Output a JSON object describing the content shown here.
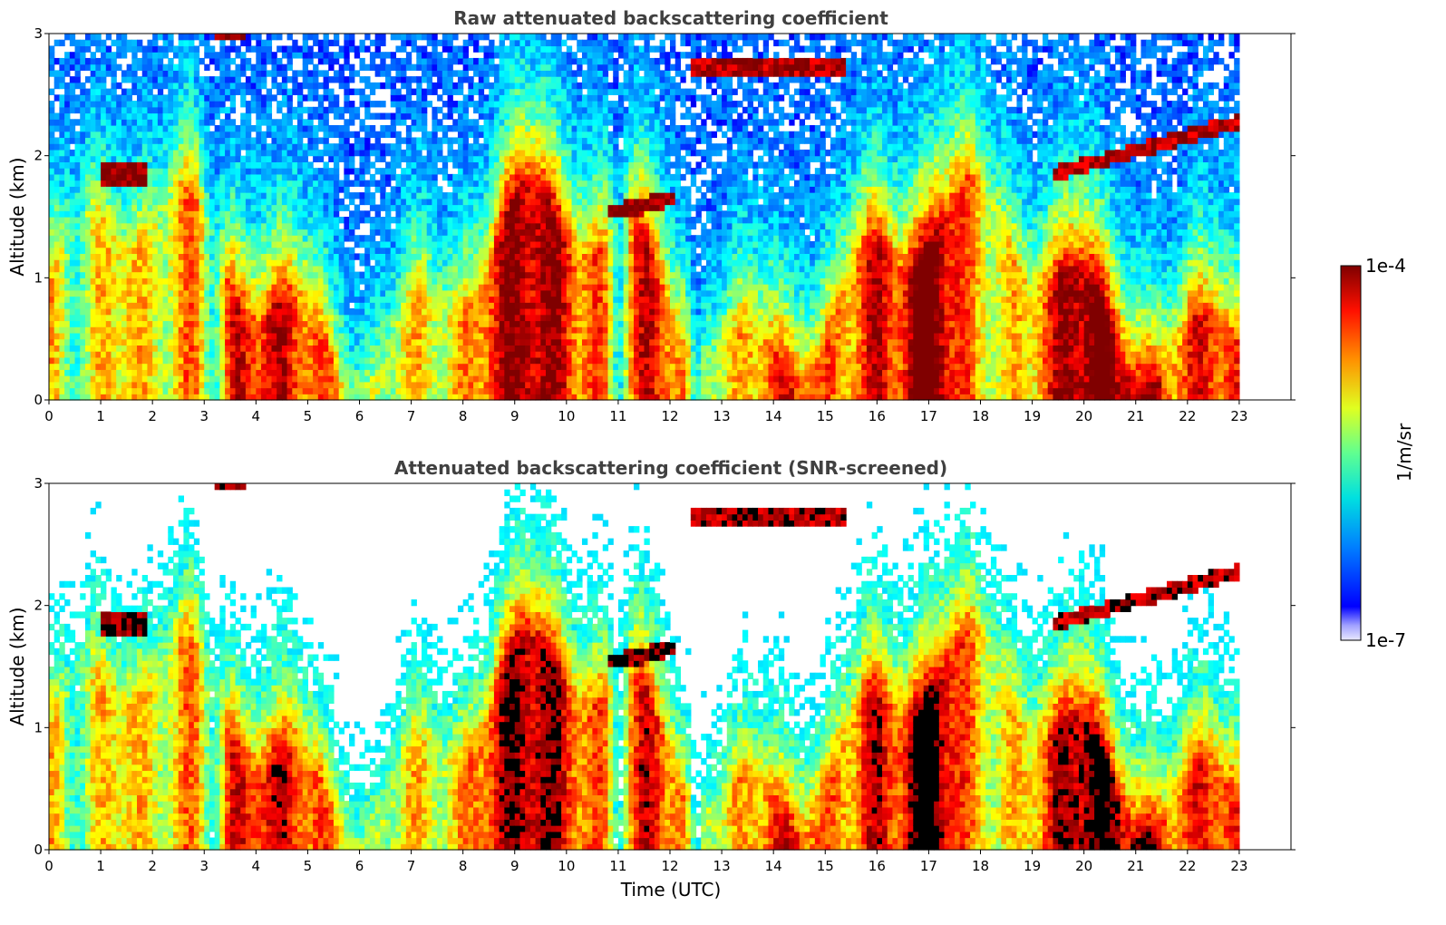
{
  "chart_data": [
    {
      "type": "heatmap",
      "title": "Raw attenuated backscattering coefficient",
      "xlabel": "",
      "ylabel": "Altitude (km)",
      "xlim": [
        0,
        24
      ],
      "ylim": [
        0,
        3
      ],
      "x_ticks": [
        "0",
        "1",
        "2",
        "3",
        "4",
        "5",
        "6",
        "7",
        "8",
        "9",
        "10",
        "11",
        "12",
        "13",
        "14",
        "15",
        "16",
        "17",
        "18",
        "19",
        "20",
        "21",
        "22",
        "23"
      ],
      "y_ticks": [
        "0",
        "1",
        "2",
        "3"
      ],
      "data_extent_x": [
        0,
        23
      ],
      "screened": false
    },
    {
      "type": "heatmap",
      "title": "Attenuated backscattering coefficient (SNR-screened)",
      "xlabel": "Time (UTC)",
      "ylabel": "Altitude (km)",
      "xlim": [
        0,
        24
      ],
      "ylim": [
        0,
        3
      ],
      "x_ticks": [
        "0",
        "1",
        "2",
        "3",
        "4",
        "5",
        "6",
        "7",
        "8",
        "9",
        "10",
        "11",
        "12",
        "13",
        "14",
        "15",
        "16",
        "17",
        "18",
        "19",
        "20",
        "21",
        "22",
        "23"
      ],
      "y_ticks": [
        "0",
        "1",
        "2",
        "3"
      ],
      "data_extent_x": [
        0,
        23
      ],
      "screened": true
    }
  ],
  "colorbar": {
    "label": "1/m/sr",
    "max_label": "1e-4",
    "min_label": "1e-7",
    "colormap": "jet",
    "scale": "log"
  },
  "colors": {
    "title_gray": "#404040",
    "saturated": "#000000"
  }
}
